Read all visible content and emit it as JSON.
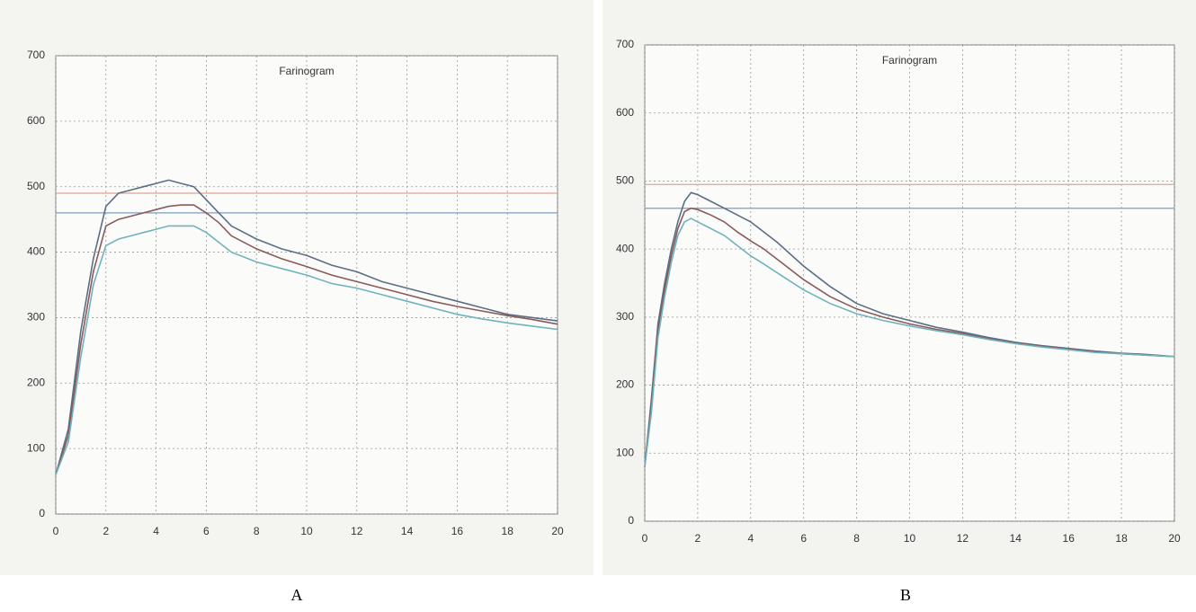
{
  "chart_data": [
    {
      "type": "line",
      "title": "Farinogram",
      "panel": "A",
      "x": [
        0,
        0.5,
        1,
        1.5,
        2,
        2.5,
        3,
        3.5,
        4,
        4.5,
        5,
        5.5,
        6,
        6.5,
        7,
        8,
        9,
        10,
        11,
        12,
        13,
        14,
        15,
        16,
        17,
        18,
        19,
        20
      ],
      "series": [
        {
          "color": "#5a6e86",
          "values": [
            60,
            130,
            280,
            390,
            470,
            490,
            495,
            500,
            505,
            510,
            505,
            500,
            480,
            460,
            440,
            420,
            405,
            395,
            380,
            370,
            355,
            345,
            335,
            325,
            315,
            305,
            300,
            295
          ]
        },
        {
          "color": "#8a5a5a",
          "values": [
            60,
            120,
            260,
            370,
            440,
            450,
            455,
            460,
            465,
            470,
            472,
            472,
            460,
            445,
            425,
            405,
            390,
            378,
            365,
            355,
            345,
            335,
            325,
            317,
            310,
            303,
            297,
            290
          ]
        },
        {
          "color": "#6fb3bd",
          "values": [
            60,
            110,
            240,
            350,
            410,
            420,
            425,
            430,
            435,
            440,
            440,
            440,
            430,
            415,
            400,
            385,
            375,
            365,
            352,
            345,
            335,
            325,
            315,
            305,
            298,
            292,
            287,
            282
          ]
        }
      ],
      "hlines": [
        {
          "value": 490,
          "color": "#e3a48e"
        },
        {
          "value": 460,
          "color": "#7a9fc4"
        }
      ],
      "xlim": [
        0,
        20
      ],
      "xticks": [
        0,
        2,
        4,
        6,
        8,
        10,
        12,
        14,
        16,
        18,
        20
      ],
      "ylim": [
        0,
        700
      ],
      "yticks": [
        0,
        100,
        200,
        300,
        400,
        500,
        600,
        700
      ],
      "grid": true
    },
    {
      "type": "line",
      "title": "Farinogram",
      "panel": "B",
      "x": [
        0,
        0.25,
        0.5,
        0.75,
        1,
        1.25,
        1.5,
        1.75,
        2,
        2.5,
        3,
        3.5,
        4,
        4.5,
        5,
        6,
        7,
        8,
        9,
        10,
        11,
        12,
        13,
        14,
        15,
        16,
        17,
        18,
        19,
        20
      ],
      "series": [
        {
          "color": "#5a6e86",
          "values": [
            80,
            180,
            290,
            350,
            400,
            440,
            470,
            483,
            480,
            470,
            460,
            450,
            440,
            425,
            410,
            375,
            345,
            320,
            305,
            295,
            285,
            278,
            270,
            263,
            258,
            254,
            250,
            247,
            245,
            242
          ]
        },
        {
          "color": "#8a5a5a",
          "values": [
            80,
            170,
            280,
            340,
            390,
            430,
            455,
            460,
            458,
            450,
            440,
            425,
            412,
            400,
            385,
            355,
            330,
            312,
            300,
            290,
            282,
            276,
            268,
            262,
            257,
            253,
            249,
            246,
            244,
            242
          ]
        },
        {
          "color": "#6fb3bd",
          "values": [
            80,
            160,
            270,
            330,
            380,
            420,
            440,
            445,
            440,
            430,
            420,
            405,
            390,
            378,
            365,
            340,
            320,
            305,
            295,
            287,
            280,
            274,
            267,
            261,
            256,
            252,
            248,
            246,
            244,
            242
          ]
        }
      ],
      "hlines": [
        {
          "value": 495,
          "color": "#e3a48e"
        },
        {
          "value": 460,
          "color": "#7a9fc4"
        }
      ],
      "xlim": [
        0,
        20
      ],
      "xticks": [
        0,
        2,
        4,
        6,
        8,
        10,
        12,
        14,
        16,
        18,
        20
      ],
      "ylim": [
        0,
        700
      ],
      "yticks": [
        0,
        100,
        200,
        300,
        400,
        500,
        600,
        700
      ],
      "grid": true
    }
  ]
}
